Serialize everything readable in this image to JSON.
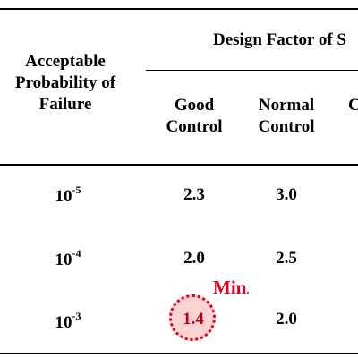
{
  "table": {
    "col0_header": [
      "Acceptable",
      "Probability of",
      "Failure"
    ],
    "group_header": "Design Factor of S",
    "sub_headers": [
      [
        "Good",
        "Control"
      ],
      [
        "Normal",
        "Control"
      ],
      [
        "",
        "C"
      ]
    ],
    "rows": [
      {
        "prob_base": "10",
        "prob_exp": "-5",
        "good": "2.3",
        "normal": "3.0"
      },
      {
        "prob_base": "10",
        "prob_exp": "-4",
        "good": "2.0",
        "normal": "2.5"
      },
      {
        "prob_base": "10",
        "prob_exp": "-3",
        "good": "1.4",
        "normal": "2.0"
      }
    ]
  },
  "annotation": {
    "label": "Min",
    "suffix": ".",
    "color": "#e0001b",
    "target_value": "1.4"
  }
}
